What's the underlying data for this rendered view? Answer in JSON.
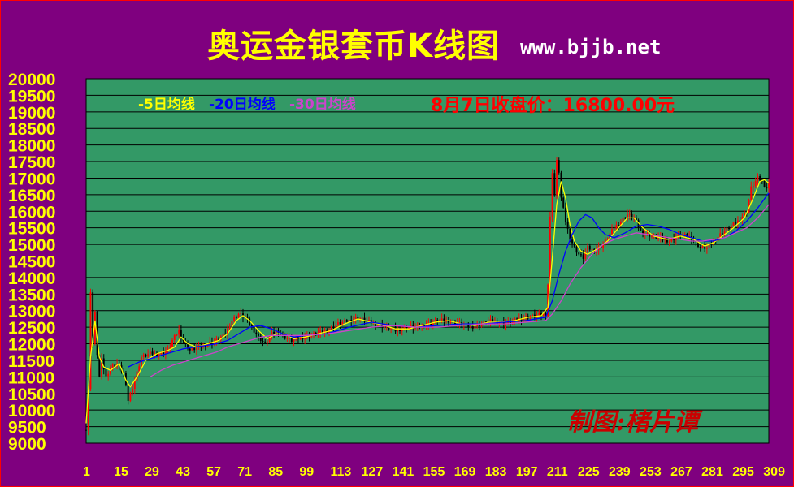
{
  "header": {
    "title": "奥运金银套币K线图",
    "site": "www.bjjb.net"
  },
  "legend": [
    {
      "label": "-5日均线",
      "color": "#ffff00"
    },
    {
      "label": "-20日均线",
      "color": "#0000ff"
    },
    {
      "label": "-30日均线",
      "color": "#cc44cc"
    }
  ],
  "close_note": "8月7日收盘价：16800.00元",
  "signature": "制图:楮片谭",
  "colors": {
    "background": "#7f007f",
    "plot_bg": "#339966",
    "up": "#ff0000",
    "down": "#000000",
    "axis_text": "#ffff00"
  },
  "chart_data": {
    "type": "candlestick",
    "ylim": [
      9000,
      20000
    ],
    "yticks": [
      9000,
      9500,
      10000,
      10500,
      11000,
      11500,
      12000,
      12500,
      13000,
      13500,
      14000,
      14500,
      15000,
      15500,
      16000,
      16500,
      17000,
      17500,
      18000,
      18500,
      19000,
      19500,
      20000
    ],
    "xticks": [
      1,
      15,
      29,
      43,
      57,
      71,
      85,
      99,
      113,
      127,
      141,
      155,
      169,
      183,
      197,
      211,
      225,
      239,
      253,
      267,
      281,
      295,
      309
    ],
    "xlim": [
      1,
      310
    ],
    "close_path": [
      [
        1,
        9400
      ],
      [
        2,
        10600
      ],
      [
        3,
        13600
      ],
      [
        4,
        12000
      ],
      [
        5,
        12900
      ],
      [
        6,
        11700
      ],
      [
        7,
        11000
      ],
      [
        8,
        11500
      ],
      [
        10,
        11000
      ],
      [
        12,
        11300
      ],
      [
        15,
        11400
      ],
      [
        18,
        11100
      ],
      [
        20,
        10300
      ],
      [
        23,
        10900
      ],
      [
        26,
        11600
      ],
      [
        30,
        11700
      ],
      [
        35,
        11700
      ],
      [
        38,
        11800
      ],
      [
        40,
        12100
      ],
      [
        43,
        12400
      ],
      [
        45,
        12100
      ],
      [
        48,
        11800
      ],
      [
        52,
        11900
      ],
      [
        56,
        12000
      ],
      [
        60,
        12100
      ],
      [
        64,
        12300
      ],
      [
        67,
        12700
      ],
      [
        70,
        12900
      ],
      [
        73,
        12800
      ],
      [
        76,
        12500
      ],
      [
        79,
        12200
      ],
      [
        82,
        12000
      ],
      [
        85,
        12300
      ],
      [
        88,
        12400
      ],
      [
        91,
        12200
      ],
      [
        94,
        12100
      ],
      [
        99,
        12200
      ],
      [
        105,
        12300
      ],
      [
        110,
        12400
      ],
      [
        115,
        12600
      ],
      [
        120,
        12700
      ],
      [
        124,
        12800
      ],
      [
        127,
        12700
      ],
      [
        132,
        12600
      ],
      [
        137,
        12500
      ],
      [
        141,
        12400
      ],
      [
        146,
        12500
      ],
      [
        151,
        12500
      ],
      [
        156,
        12600
      ],
      [
        160,
        12700
      ],
      [
        165,
        12700
      ],
      [
        170,
        12600
      ],
      [
        175,
        12500
      ],
      [
        180,
        12600
      ],
      [
        185,
        12700
      ],
      [
        190,
        12600
      ],
      [
        195,
        12700
      ],
      [
        200,
        12800
      ],
      [
        205,
        12850
      ],
      [
        209,
        12900
      ],
      [
        210,
        13800
      ],
      [
        211,
        15800
      ],
      [
        212,
        17200
      ],
      [
        213,
        16500
      ],
      [
        214,
        17500
      ],
      [
        215,
        17200
      ],
      [
        216,
        16400
      ],
      [
        218,
        15700
      ],
      [
        220,
        15200
      ],
      [
        222,
        14900
      ],
      [
        224,
        14700
      ],
      [
        226,
        14600
      ],
      [
        228,
        14900
      ],
      [
        231,
        14800
      ],
      [
        235,
        15000
      ],
      [
        240,
        15500
      ],
      [
        243,
        15700
      ],
      [
        246,
        15900
      ],
      [
        249,
        15800
      ],
      [
        252,
        15400
      ],
      [
        255,
        15300
      ],
      [
        260,
        15200
      ],
      [
        265,
        15100
      ],
      [
        270,
        15300
      ],
      [
        275,
        15200
      ],
      [
        279,
        14900
      ],
      [
        282,
        14900
      ],
      [
        285,
        15100
      ],
      [
        288,
        15300
      ],
      [
        292,
        15500
      ],
      [
        296,
        15700
      ],
      [
        300,
        16000
      ],
      [
        302,
        16700
      ],
      [
        305,
        17000
      ],
      [
        307,
        16900
      ],
      [
        309,
        16700
      ],
      [
        310,
        16800
      ]
    ],
    "series": [
      {
        "name": "5日均线",
        "color": "#ffff00",
        "values": [
          [
            1,
            9600
          ],
          [
            3,
            11600
          ],
          [
            5,
            12700
          ],
          [
            7,
            11600
          ],
          [
            9,
            11300
          ],
          [
            12,
            11200
          ],
          [
            16,
            11400
          ],
          [
            19,
            10900
          ],
          [
            21,
            10700
          ],
          [
            24,
            11000
          ],
          [
            28,
            11500
          ],
          [
            33,
            11700
          ],
          [
            38,
            11800
          ],
          [
            41,
            11900
          ],
          [
            44,
            12200
          ],
          [
            47,
            12000
          ],
          [
            51,
            11900
          ],
          [
            56,
            12000
          ],
          [
            61,
            12100
          ],
          [
            65,
            12300
          ],
          [
            69,
            12700
          ],
          [
            72,
            12850
          ],
          [
            75,
            12700
          ],
          [
            79,
            12400
          ],
          [
            83,
            12150
          ],
          [
            87,
            12300
          ],
          [
            91,
            12300
          ],
          [
            95,
            12150
          ],
          [
            100,
            12200
          ],
          [
            106,
            12300
          ],
          [
            112,
            12400
          ],
          [
            118,
            12600
          ],
          [
            124,
            12750
          ],
          [
            130,
            12650
          ],
          [
            136,
            12550
          ],
          [
            141,
            12450
          ],
          [
            147,
            12450
          ],
          [
            153,
            12550
          ],
          [
            159,
            12650
          ],
          [
            165,
            12700
          ],
          [
            171,
            12600
          ],
          [
            177,
            12550
          ],
          [
            183,
            12650
          ],
          [
            189,
            12650
          ],
          [
            195,
            12700
          ],
          [
            201,
            12800
          ],
          [
            207,
            12850
          ],
          [
            210,
            13100
          ],
          [
            212,
            14600
          ],
          [
            214,
            16200
          ],
          [
            216,
            16900
          ],
          [
            218,
            16400
          ],
          [
            220,
            15600
          ],
          [
            222,
            15100
          ],
          [
            225,
            14800
          ],
          [
            228,
            14700
          ],
          [
            232,
            14850
          ],
          [
            237,
            15100
          ],
          [
            242,
            15500
          ],
          [
            246,
            15800
          ],
          [
            249,
            15800
          ],
          [
            253,
            15500
          ],
          [
            258,
            15250
          ],
          [
            264,
            15150
          ],
          [
            270,
            15250
          ],
          [
            276,
            15150
          ],
          [
            281,
            14950
          ],
          [
            285,
            15050
          ],
          [
            289,
            15250
          ],
          [
            294,
            15500
          ],
          [
            299,
            15800
          ],
          [
            303,
            16400
          ],
          [
            306,
            16900
          ],
          [
            308,
            16950
          ],
          [
            310,
            16850
          ]
        ]
      },
      {
        "name": "20日均线",
        "color": "#0000ff",
        "values": [
          [
            20,
            11300
          ],
          [
            25,
            11450
          ],
          [
            30,
            11550
          ],
          [
            35,
            11650
          ],
          [
            40,
            11750
          ],
          [
            45,
            11850
          ],
          [
            50,
            11900
          ],
          [
            55,
            11950
          ],
          [
            60,
            12000
          ],
          [
            65,
            12100
          ],
          [
            70,
            12300
          ],
          [
            75,
            12500
          ],
          [
            80,
            12550
          ],
          [
            85,
            12450
          ],
          [
            90,
            12300
          ],
          [
            95,
            12200
          ],
          [
            100,
            12250
          ],
          [
            110,
            12300
          ],
          [
            120,
            12500
          ],
          [
            130,
            12650
          ],
          [
            140,
            12550
          ],
          [
            150,
            12500
          ],
          [
            160,
            12550
          ],
          [
            170,
            12600
          ],
          [
            180,
            12600
          ],
          [
            190,
            12650
          ],
          [
            200,
            12700
          ],
          [
            209,
            12800
          ],
          [
            212,
            13300
          ],
          [
            215,
            14100
          ],
          [
            218,
            14800
          ],
          [
            221,
            15300
          ],
          [
            224,
            15700
          ],
          [
            227,
            15900
          ],
          [
            230,
            15800
          ],
          [
            233,
            15500
          ],
          [
            236,
            15300
          ],
          [
            240,
            15200
          ],
          [
            245,
            15350
          ],
          [
            250,
            15550
          ],
          [
            255,
            15600
          ],
          [
            260,
            15550
          ],
          [
            265,
            15450
          ],
          [
            270,
            15300
          ],
          [
            275,
            15200
          ],
          [
            280,
            15100
          ],
          [
            285,
            15100
          ],
          [
            290,
            15200
          ],
          [
            295,
            15400
          ],
          [
            300,
            15700
          ],
          [
            305,
            16100
          ],
          [
            310,
            16550
          ]
        ]
      },
      {
        "name": "30日均线",
        "color": "#cc44cc",
        "values": [
          [
            30,
            11000
          ],
          [
            35,
            11200
          ],
          [
            40,
            11350
          ],
          [
            45,
            11450
          ],
          [
            50,
            11550
          ],
          [
            55,
            11650
          ],
          [
            60,
            11750
          ],
          [
            65,
            11900
          ],
          [
            70,
            12000
          ],
          [
            75,
            12100
          ],
          [
            80,
            12200
          ],
          [
            85,
            12250
          ],
          [
            90,
            12250
          ],
          [
            95,
            12250
          ],
          [
            100,
            12250
          ],
          [
            110,
            12300
          ],
          [
            120,
            12400
          ],
          [
            130,
            12500
          ],
          [
            140,
            12550
          ],
          [
            150,
            12500
          ],
          [
            160,
            12500
          ],
          [
            170,
            12550
          ],
          [
            180,
            12600
          ],
          [
            190,
            12600
          ],
          [
            200,
            12650
          ],
          [
            209,
            12700
          ],
          [
            212,
            12900
          ],
          [
            216,
            13300
          ],
          [
            220,
            13800
          ],
          [
            225,
            14300
          ],
          [
            230,
            14700
          ],
          [
            235,
            15000
          ],
          [
            240,
            15150
          ],
          [
            245,
            15250
          ],
          [
            250,
            15350
          ],
          [
            255,
            15300
          ],
          [
            260,
            15250
          ],
          [
            265,
            15200
          ],
          [
            270,
            15150
          ],
          [
            275,
            15100
          ],
          [
            280,
            15100
          ],
          [
            285,
            15150
          ],
          [
            290,
            15200
          ],
          [
            295,
            15350
          ],
          [
            300,
            15500
          ],
          [
            305,
            15800
          ],
          [
            310,
            16200
          ]
        ]
      }
    ]
  }
}
